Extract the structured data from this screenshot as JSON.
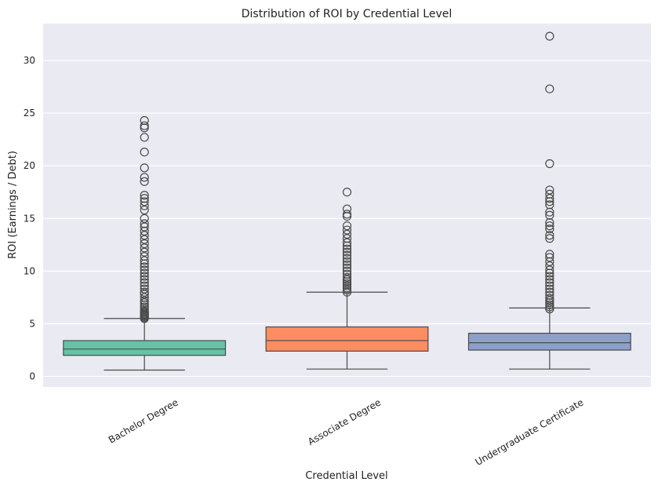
{
  "chart_data": {
    "type": "box",
    "title": "Distribution of ROI by Credential Level",
    "xlabel": "Credential Level",
    "ylabel": "ROI (Earnings / Debt)",
    "ylim": [
      -1,
      33.5
    ],
    "yticks": [
      0,
      5,
      10,
      15,
      20,
      25,
      30
    ],
    "grid": true,
    "background": "#eaeaf2",
    "categories": [
      "Bachelor Degree",
      "Associate Degree",
      "Undergraduate Certificate"
    ],
    "boxes": [
      {
        "category": "Bachelor Degree",
        "color": "#66c2a5",
        "whisker_low": 0.6,
        "q1": 2.0,
        "median": 2.6,
        "q3": 3.4,
        "whisker_high": 5.5,
        "outliers": [
          5.5,
          5.6,
          5.7,
          5.8,
          5.9,
          6.0,
          6.1,
          6.2,
          6.4,
          6.6,
          6.8,
          7.0,
          7.2,
          7.5,
          7.8,
          8.0,
          8.3,
          8.6,
          8.9,
          9.2,
          9.5,
          9.8,
          10.1,
          10.4,
          10.7,
          11.0,
          11.4,
          11.8,
          12.2,
          12.6,
          13.0,
          13.4,
          13.8,
          14.2,
          14.5,
          15.0,
          15.8,
          16.2,
          16.6,
          16.9,
          17.2,
          18.5,
          18.9,
          19.8,
          21.3,
          22.7,
          23.6,
          23.8,
          24.3
        ]
      },
      {
        "category": "Associate Degree",
        "color": "#fc8d62",
        "whisker_low": 0.7,
        "q1": 2.4,
        "median": 3.4,
        "q3": 4.7,
        "whisker_high": 8.0,
        "outliers": [
          8.0,
          8.2,
          8.4,
          8.6,
          8.8,
          9.0,
          9.2,
          9.4,
          9.7,
          10.0,
          10.3,
          10.6,
          10.9,
          11.2,
          11.5,
          11.8,
          12.1,
          12.4,
          12.7,
          13.1,
          13.5,
          13.9,
          14.3,
          15.2,
          15.4,
          15.9,
          17.5
        ]
      },
      {
        "category": "Undergraduate Certificate",
        "color": "#8da0cb",
        "whisker_low": 0.7,
        "q1": 2.5,
        "median": 3.2,
        "q3": 4.1,
        "whisker_high": 6.5,
        "outliers": [
          6.4,
          6.6,
          6.8,
          7.0,
          7.2,
          7.4,
          7.7,
          8.0,
          8.3,
          8.6,
          8.9,
          9.2,
          9.5,
          9.8,
          10.1,
          10.5,
          10.9,
          11.3,
          11.6,
          13.1,
          13.4,
          14.0,
          14.3,
          14.6,
          15.3,
          15.6,
          16.3,
          16.6,
          16.9,
          17.3,
          17.7,
          20.2,
          27.3,
          32.3
        ]
      }
    ]
  }
}
